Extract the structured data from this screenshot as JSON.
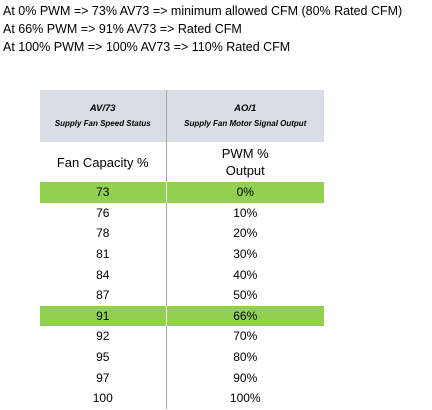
{
  "notes": [
    "At 0% PWM => 73% AV73 => minimum allowed CFM (80% Rated CFM)",
    "At 66% PWM => 91% AV73 => Rated CFM",
    "At 100% PWM => 100% AV73 => 110% Rated CFM"
  ],
  "table": {
    "col1_header": {
      "code": "AV/73",
      "desc": "Supply Fan Speed Status"
    },
    "col2_header": {
      "code": "AO/1",
      "desc": "Supply Fan Motor Signal Output"
    },
    "col1_subheader": "Fan Capacity %",
    "col2_subheader_line1": "PWM %",
    "col2_subheader_line2": "Output",
    "highlight_color": "#92d050",
    "header_color": "#d9dde6",
    "rows": [
      {
        "capacity": "73",
        "pwm": "0%",
        "highlight": true
      },
      {
        "capacity": "76",
        "pwm": "10%",
        "highlight": false
      },
      {
        "capacity": "78",
        "pwm": "20%",
        "highlight": false
      },
      {
        "capacity": "81",
        "pwm": "30%",
        "highlight": false
      },
      {
        "capacity": "84",
        "pwm": "40%",
        "highlight": false
      },
      {
        "capacity": "87",
        "pwm": "50%",
        "highlight": false
      },
      {
        "capacity": "91",
        "pwm": "66%",
        "highlight": true
      },
      {
        "capacity": "92",
        "pwm": "70%",
        "highlight": false
      },
      {
        "capacity": "95",
        "pwm": "80%",
        "highlight": false
      },
      {
        "capacity": "97",
        "pwm": "90%",
        "highlight": false
      },
      {
        "capacity": "100",
        "pwm": "100%",
        "highlight": false
      }
    ]
  }
}
